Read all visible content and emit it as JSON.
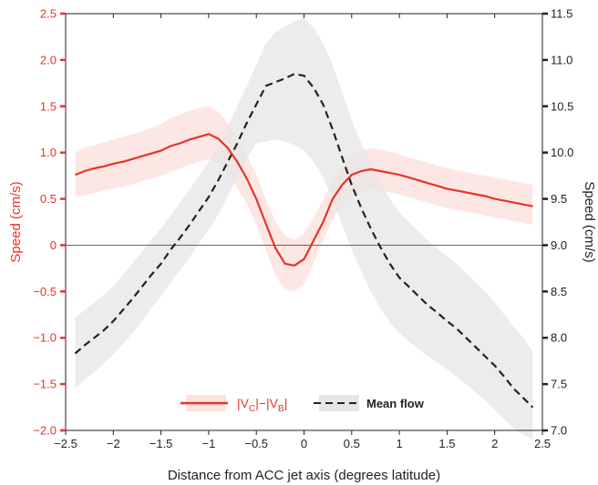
{
  "chart_data": {
    "type": "line",
    "xlabel": "Distance from ACC jet axis (degrees latitude)",
    "ylabel_left": "Speed (cm/s)",
    "ylabel_right": "Speed (cm/s)",
    "xlim": [
      -2.5,
      2.5
    ],
    "ylim_left": [
      -2.0,
      2.5
    ],
    "ylim_right": [
      7.0,
      11.5
    ],
    "x_ticks": [
      "−2.5",
      "−2",
      "−1.5",
      "−1",
      "−0.5",
      "0",
      "0.5",
      "1",
      "1.5",
      "2",
      "2.5"
    ],
    "y_left_ticks": [
      "−2.0",
      "−1.5",
      "−1.0",
      "−0.5",
      "0",
      "0.5",
      "1.0",
      "1.5",
      "2.0",
      "2.5"
    ],
    "y_right_ticks": [
      "7.0",
      "7.5",
      "8.0",
      "8.5",
      "9.0",
      "9.5",
      "10.0",
      "10.5",
      "11.0",
      "11.5"
    ],
    "grid": false,
    "zero_line": true,
    "legend": {
      "position": "bottom-center",
      "entries": [
        {
          "label_parts": [
            "|V",
            "C",
            "|−|V",
            "B",
            "|"
          ],
          "color": "#e8332a",
          "style": "solid"
        },
        {
          "label": "Mean flow",
          "color": "#222222",
          "style": "dashed"
        }
      ]
    },
    "series": [
      {
        "axis": "left",
        "color": "#e8332a",
        "band_color": "#fde3df",
        "style": "solid",
        "x": [
          -2.4,
          -2.3,
          -2.2,
          -2.1,
          -2.0,
          -1.9,
          -1.8,
          -1.7,
          -1.6,
          -1.5,
          -1.4,
          -1.3,
          -1.2,
          -1.1,
          -1.0,
          -0.9,
          -0.8,
          -0.7,
          -0.6,
          -0.5,
          -0.4,
          -0.3,
          -0.2,
          -0.1,
          0.0,
          0.1,
          0.2,
          0.3,
          0.4,
          0.5,
          0.6,
          0.7,
          0.8,
          0.9,
          1.0,
          1.1,
          1.2,
          1.3,
          1.4,
          1.5,
          1.6,
          1.7,
          1.8,
          1.9,
          2.0,
          2.1,
          2.2,
          2.3,
          2.4
        ],
        "y": [
          0.76,
          0.8,
          0.83,
          0.85,
          0.88,
          0.9,
          0.93,
          0.96,
          0.99,
          1.02,
          1.07,
          1.1,
          1.14,
          1.17,
          1.2,
          1.15,
          1.05,
          0.9,
          0.72,
          0.5,
          0.23,
          -0.03,
          -0.2,
          -0.22,
          -0.15,
          0.05,
          0.25,
          0.5,
          0.65,
          0.76,
          0.8,
          0.82,
          0.8,
          0.78,
          0.76,
          0.73,
          0.7,
          0.67,
          0.64,
          0.61,
          0.59,
          0.57,
          0.55,
          0.53,
          0.5,
          0.48,
          0.46,
          0.44,
          0.42
        ],
        "band_low": [
          0.52,
          0.54,
          0.56,
          0.59,
          0.61,
          0.63,
          0.66,
          0.69,
          0.72,
          0.75,
          0.79,
          0.83,
          0.87,
          0.9,
          0.93,
          0.88,
          0.77,
          0.62,
          0.45,
          0.22,
          -0.05,
          -0.33,
          -0.48,
          -0.5,
          -0.42,
          -0.2,
          0.05,
          0.28,
          0.43,
          0.52,
          0.57,
          0.6,
          0.59,
          0.57,
          0.55,
          0.52,
          0.49,
          0.46,
          0.43,
          0.4,
          0.38,
          0.36,
          0.34,
          0.32,
          0.3,
          0.28,
          0.26,
          0.24,
          0.22
        ],
        "band_high": [
          1.0,
          1.05,
          1.08,
          1.11,
          1.14,
          1.17,
          1.2,
          1.23,
          1.27,
          1.31,
          1.37,
          1.41,
          1.45,
          1.48,
          1.5,
          1.44,
          1.32,
          1.16,
          0.97,
          0.76,
          0.5,
          0.26,
          0.1,
          0.06,
          0.12,
          0.3,
          0.48,
          0.7,
          0.86,
          0.97,
          1.03,
          1.05,
          1.03,
          1.01,
          0.98,
          0.95,
          0.92,
          0.89,
          0.86,
          0.83,
          0.81,
          0.79,
          0.77,
          0.75,
          0.73,
          0.71,
          0.69,
          0.67,
          0.65
        ]
      },
      {
        "axis": "right",
        "color": "#222222",
        "band_color": "#e6e6e6",
        "style": "dashed",
        "x": [
          -2.4,
          -2.3,
          -2.2,
          -2.1,
          -2.0,
          -1.9,
          -1.8,
          -1.7,
          -1.6,
          -1.5,
          -1.4,
          -1.3,
          -1.2,
          -1.1,
          -1.0,
          -0.9,
          -0.8,
          -0.7,
          -0.6,
          -0.5,
          -0.4,
          -0.3,
          -0.2,
          -0.1,
          0.0,
          0.1,
          0.2,
          0.3,
          0.4,
          0.5,
          0.6,
          0.7,
          0.8,
          0.9,
          1.0,
          1.1,
          1.2,
          1.3,
          1.4,
          1.5,
          1.6,
          1.7,
          1.8,
          1.9,
          2.0,
          2.1,
          2.2,
          2.3,
          2.4
        ],
        "y": [
          7.83,
          7.92,
          8.0,
          8.08,
          8.18,
          8.3,
          8.42,
          8.55,
          8.68,
          8.8,
          8.95,
          9.08,
          9.22,
          9.37,
          9.52,
          9.7,
          9.9,
          10.1,
          10.32,
          10.52,
          10.72,
          10.76,
          10.8,
          10.85,
          10.83,
          10.7,
          10.52,
          10.25,
          9.95,
          9.65,
          9.4,
          9.18,
          8.98,
          8.8,
          8.65,
          8.55,
          8.45,
          8.35,
          8.27,
          8.18,
          8.1,
          8.0,
          7.9,
          7.8,
          7.7,
          7.58,
          7.45,
          7.35,
          7.25
        ],
        "band_low": [
          7.45,
          7.55,
          7.63,
          7.72,
          7.82,
          7.93,
          8.05,
          8.18,
          8.32,
          8.45,
          8.6,
          8.73,
          8.87,
          9.02,
          9.17,
          9.33,
          9.53,
          9.73,
          9.93,
          10.1,
          10.12,
          10.14,
          10.12,
          10.08,
          10.02,
          9.9,
          9.73,
          9.5,
          9.22,
          8.95,
          8.72,
          8.5,
          8.32,
          8.17,
          8.05,
          7.96,
          7.88,
          7.8,
          7.73,
          7.66,
          7.58,
          7.5,
          7.41,
          7.32,
          7.22,
          7.12,
          7.02,
          6.95,
          6.9
        ],
        "band_high": [
          8.22,
          8.3,
          8.38,
          8.46,
          8.56,
          8.68,
          8.8,
          8.93,
          9.06,
          9.18,
          9.32,
          9.46,
          9.6,
          9.75,
          9.9,
          10.08,
          10.28,
          10.5,
          10.72,
          10.95,
          11.18,
          11.3,
          11.36,
          11.42,
          11.45,
          11.35,
          11.18,
          10.95,
          10.65,
          10.35,
          10.1,
          9.88,
          9.68,
          9.5,
          9.35,
          9.25,
          9.15,
          9.05,
          8.96,
          8.88,
          8.8,
          8.7,
          8.6,
          8.5,
          8.38,
          8.25,
          8.12,
          8.0,
          7.85
        ]
      }
    ]
  }
}
